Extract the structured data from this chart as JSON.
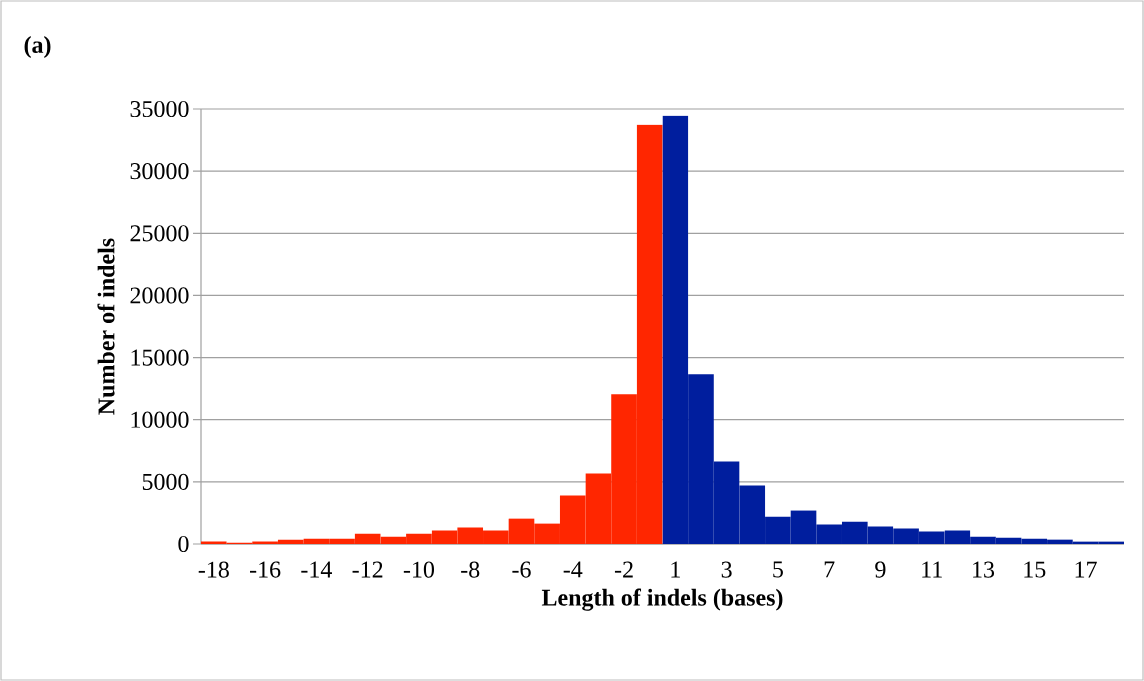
{
  "chart_data": {
    "type": "bar",
    "title": "(a)",
    "xlabel": "Length of indels (bases)",
    "ylabel": "Number of indels",
    "categories": [
      "-18",
      null,
      "-16",
      null,
      "-14",
      null,
      "-12",
      null,
      "-10",
      null,
      "-8",
      null,
      "-6",
      null,
      "-4",
      null,
      "-2",
      null,
      "1",
      null,
      "3",
      null,
      "5",
      null,
      "7",
      null,
      "9",
      null,
      "11",
      null,
      "13",
      null,
      "15",
      null,
      "17",
      null
    ],
    "values": [
      200,
      100,
      200,
      350,
      430,
      430,
      830,
      590,
      830,
      1080,
      1320,
      1080,
      2040,
      1640,
      3900,
      5670,
      12040,
      33740,
      34460,
      13660,
      6640,
      4700,
      2200,
      2690,
      1560,
      1800,
      1400,
      1240,
      1000,
      1080,
      590,
      510,
      430,
      350,
      190,
      190
    ],
    "colors": [
      "#ff2600",
      "#ff2600",
      "#ff2600",
      "#ff2600",
      "#ff2600",
      "#ff2600",
      "#ff2600",
      "#ff2600",
      "#ff2600",
      "#ff2600",
      "#ff2600",
      "#ff2600",
      "#ff2600",
      "#ff2600",
      "#ff2600",
      "#ff2600",
      "#ff2600",
      "#ff2600",
      "#001e9e",
      "#001e9e",
      "#001e9e",
      "#001e9e",
      "#001e9e",
      "#001e9e",
      "#001e9e",
      "#001e9e",
      "#001e9e",
      "#001e9e",
      "#001e9e",
      "#001e9e",
      "#001e9e",
      "#001e9e",
      "#001e9e",
      "#001e9e",
      "#001e9e",
      "#001e9e"
    ],
    "ylim": [
      0,
      35000
    ],
    "yticks": [
      0,
      5000,
      10000,
      15000,
      20000,
      25000,
      30000,
      35000
    ],
    "grid": "y"
  }
}
